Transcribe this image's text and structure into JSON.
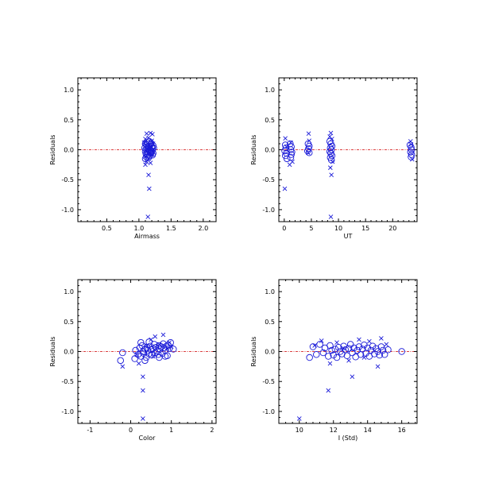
{
  "chart_data": [
    {
      "type": "scatter",
      "title": "",
      "xlabel": "Airmass",
      "ylabel": "Residuals",
      "xlim": [
        0.05,
        2.2
      ],
      "ylim": [
        -1.2,
        1.2
      ],
      "xticks": [
        0.5,
        1.0,
        1.5,
        2.0
      ],
      "xtick_labels": [
        "0.5",
        "1.0",
        "1.5",
        "2.0"
      ],
      "yticks": [
        -1.0,
        -0.5,
        0.0,
        0.5,
        1.0
      ],
      "ytick_labels": [
        "-1.0",
        "-0.5",
        "0.0",
        "0.5",
        "1.0"
      ],
      "reference_line_y": 0.0,
      "grid": false,
      "series": [
        {
          "marker": "x",
          "color": "#1a1ad8",
          "points": [
            [
              1.12,
              0.27
            ],
            [
              1.18,
              0.28
            ],
            [
              1.21,
              0.26
            ],
            [
              1.1,
              0.18
            ],
            [
              1.15,
              0.2
            ],
            [
              1.2,
              0.15
            ],
            [
              1.08,
              0.12
            ],
            [
              1.13,
              0.1
            ],
            [
              1.17,
              0.08
            ],
            [
              1.22,
              0.1
            ],
            [
              1.09,
              0.05
            ],
            [
              1.14,
              0.02
            ],
            [
              1.19,
              0.04
            ],
            [
              1.23,
              0.0
            ],
            [
              1.11,
              -0.03
            ],
            [
              1.16,
              -0.05
            ],
            [
              1.2,
              -0.08
            ],
            [
              1.1,
              -0.12
            ],
            [
              1.15,
              -0.15
            ],
            [
              1.12,
              -0.2
            ],
            [
              1.18,
              -0.22
            ],
            [
              1.1,
              -0.25
            ],
            [
              1.15,
              -0.42
            ],
            [
              1.16,
              -0.65
            ],
            [
              1.14,
              -1.12
            ]
          ]
        },
        {
          "marker": "o",
          "color": "#1a1ad8",
          "points": [
            [
              1.1,
              0.1
            ],
            [
              1.12,
              0.08
            ],
            [
              1.15,
              0.06
            ],
            [
              1.18,
              0.09
            ],
            [
              1.2,
              0.05
            ],
            [
              1.22,
              0.07
            ],
            [
              1.09,
              0.03
            ],
            [
              1.11,
              0.01
            ],
            [
              1.14,
              0.02
            ],
            [
              1.17,
              0.0
            ],
            [
              1.19,
              -0.01
            ],
            [
              1.21,
              0.02
            ],
            [
              1.23,
              0.03
            ],
            [
              1.1,
              -0.03
            ],
            [
              1.13,
              -0.04
            ],
            [
              1.16,
              -0.02
            ],
            [
              1.18,
              -0.05
            ],
            [
              1.2,
              -0.03
            ],
            [
              1.22,
              -0.06
            ],
            [
              1.11,
              -0.07
            ],
            [
              1.14,
              -0.08
            ],
            [
              1.17,
              -0.1
            ],
            [
              1.19,
              -0.06
            ],
            [
              1.12,
              -0.12
            ],
            [
              1.15,
              -0.13
            ],
            [
              1.1,
              -0.15
            ],
            [
              1.13,
              0.12
            ],
            [
              1.16,
              0.14
            ],
            [
              1.19,
              0.11
            ],
            [
              1.21,
              -0.09
            ]
          ]
        }
      ]
    },
    {
      "type": "scatter",
      "title": "",
      "xlabel": "UT",
      "ylabel": "Residuals",
      "xlim": [
        -1,
        24.5
      ],
      "ylim": [
        -1.2,
        1.2
      ],
      "xticks": [
        0,
        5,
        10,
        15,
        20
      ],
      "xtick_labels": [
        "0",
        "5",
        "10",
        "15",
        "20"
      ],
      "yticks": [
        -1.0,
        -0.5,
        0.0,
        0.5,
        1.0
      ],
      "ytick_labels": [
        "-1.0",
        "-0.5",
        "0.0",
        "0.5",
        "1.0"
      ],
      "reference_line_y": 0.0,
      "grid": false,
      "series": [
        {
          "marker": "x",
          "color": "#1a1ad8",
          "points": [
            [
              0.2,
              0.19
            ],
            [
              0.1,
              -0.65
            ],
            [
              0.4,
              0.05
            ],
            [
              1.2,
              0.12
            ],
            [
              1.5,
              -0.2
            ],
            [
              1.0,
              -0.25
            ],
            [
              4.5,
              0.27
            ],
            [
              4.6,
              0.15
            ],
            [
              4.4,
              -0.05
            ],
            [
              8.6,
              0.28
            ],
            [
              8.4,
              0.22
            ],
            [
              8.8,
              0.18
            ],
            [
              8.5,
              -0.3
            ],
            [
              8.7,
              -0.42
            ],
            [
              8.6,
              -1.12
            ],
            [
              8.9,
              -0.2
            ],
            [
              23.3,
              0.14
            ],
            [
              23.6,
              -0.16
            ],
            [
              23.4,
              0.09
            ]
          ]
        },
        {
          "marker": "o",
          "color": "#1a1ad8",
          "points": [
            [
              0.2,
              0.08
            ],
            [
              0.3,
              0.03
            ],
            [
              0.1,
              -0.02
            ],
            [
              0.4,
              -0.06
            ],
            [
              0.2,
              -0.1
            ],
            [
              0.5,
              -0.15
            ],
            [
              1.1,
              0.1
            ],
            [
              1.3,
              0.05
            ],
            [
              1.2,
              0.0
            ],
            [
              1.4,
              -0.04
            ],
            [
              1.3,
              -0.08
            ],
            [
              1.2,
              -0.13
            ],
            [
              4.4,
              0.1
            ],
            [
              4.6,
              0.06
            ],
            [
              4.5,
              0.02
            ],
            [
              4.3,
              -0.02
            ],
            [
              4.6,
              -0.05
            ],
            [
              8.4,
              0.14
            ],
            [
              8.6,
              0.1
            ],
            [
              8.8,
              0.06
            ],
            [
              8.5,
              0.03
            ],
            [
              8.7,
              0.0
            ],
            [
              8.4,
              -0.03
            ],
            [
              8.6,
              -0.06
            ],
            [
              8.8,
              -0.1
            ],
            [
              8.5,
              -0.13
            ],
            [
              8.7,
              -0.17
            ],
            [
              23.2,
              0.08
            ],
            [
              23.4,
              0.04
            ],
            [
              23.5,
              0.0
            ],
            [
              23.3,
              -0.04
            ],
            [
              23.5,
              -0.08
            ],
            [
              23.4,
              -0.12
            ]
          ]
        }
      ]
    },
    {
      "type": "scatter",
      "title": "",
      "xlabel": "Color",
      "ylabel": "Residuals",
      "xlim": [
        -1.3,
        2.1
      ],
      "ylim": [
        -1.2,
        1.2
      ],
      "xticks": [
        -1,
        0,
        1,
        2
      ],
      "xtick_labels": [
        "-1",
        "0",
        "1",
        "2"
      ],
      "yticks": [
        -1.0,
        -0.5,
        0.0,
        0.5,
        1.0
      ],
      "ytick_labels": [
        "-1.0",
        "-0.5",
        "0.0",
        "0.5",
        "1.0"
      ],
      "reference_line_y": 0.0,
      "grid": false,
      "series": [
        {
          "marker": "x",
          "color": "#1a1ad8",
          "points": [
            [
              -0.2,
              -0.25
            ],
            [
              0.3,
              -0.42
            ],
            [
              0.3,
              -0.65
            ],
            [
              0.3,
              -1.12
            ],
            [
              0.5,
              0.2
            ],
            [
              0.6,
              0.25
            ],
            [
              0.8,
              0.28
            ],
            [
              0.95,
              0.15
            ],
            [
              0.2,
              -0.2
            ],
            [
              0.4,
              0.1
            ],
            [
              0.7,
              0.12
            ],
            [
              0.9,
              0.05
            ],
            [
              0.15,
              -0.05
            ],
            [
              0.55,
              -0.08
            ],
            [
              1.0,
              0.08
            ]
          ]
        },
        {
          "marker": "o",
          "color": "#1a1ad8",
          "points": [
            [
              -0.25,
              -0.15
            ],
            [
              -0.2,
              -0.02
            ],
            [
              0.1,
              -0.12
            ],
            [
              0.12,
              0.02
            ],
            [
              0.18,
              -0.05
            ],
            [
              0.22,
              0.06
            ],
            [
              0.25,
              -0.08
            ],
            [
              0.28,
              0.1
            ],
            [
              0.3,
              0.0
            ],
            [
              0.32,
              -0.03
            ],
            [
              0.35,
              0.04
            ],
            [
              0.38,
              -0.1
            ],
            [
              0.4,
              0.07
            ],
            [
              0.42,
              0.02
            ],
            [
              0.45,
              -0.04
            ],
            [
              0.48,
              0.09
            ],
            [
              0.5,
              0.03
            ],
            [
              0.52,
              -0.06
            ],
            [
              0.55,
              0.05
            ],
            [
              0.58,
              0.12
            ],
            [
              0.6,
              -0.02
            ],
            [
              0.62,
              0.07
            ],
            [
              0.65,
              0.01
            ],
            [
              0.68,
              -0.05
            ],
            [
              0.7,
              0.1
            ],
            [
              0.72,
              0.04
            ],
            [
              0.75,
              0.08
            ],
            [
              0.78,
              -0.03
            ],
            [
              0.8,
              0.13
            ],
            [
              0.82,
              0.06
            ],
            [
              0.85,
              0.02
            ],
            [
              0.88,
              0.09
            ],
            [
              0.9,
              -0.07
            ],
            [
              0.92,
              0.11
            ],
            [
              0.95,
              0.05
            ],
            [
              0.98,
              0.15
            ],
            [
              1.05,
              0.04
            ],
            [
              0.25,
              0.15
            ],
            [
              0.35,
              -0.15
            ],
            [
              0.45,
              0.16
            ],
            [
              0.7,
              -0.1
            ],
            [
              0.85,
              -0.08
            ]
          ]
        }
      ]
    },
    {
      "type": "scatter",
      "title": "",
      "xlabel": "I (Std)",
      "ylabel": "Residuals",
      "xlim": [
        8.8,
        16.9
      ],
      "ylim": [
        -1.2,
        1.2
      ],
      "xticks": [
        10,
        12,
        14,
        16
      ],
      "xtick_labels": [
        "10",
        "12",
        "14",
        "16"
      ],
      "yticks": [
        -1.0,
        -0.5,
        0.0,
        0.5,
        1.0
      ],
      "ytick_labels": [
        "-1.0",
        "-0.5",
        "0.0",
        "0.5",
        "1.0"
      ],
      "reference_line_y": 0.0,
      "grid": false,
      "series": [
        {
          "marker": "x",
          "color": "#1a1ad8",
          "points": [
            [
              10.0,
              -1.12
            ],
            [
              11.7,
              -0.65
            ],
            [
              13.1,
              -0.42
            ],
            [
              11.3,
              0.18
            ],
            [
              12.2,
              0.15
            ],
            [
              13.5,
              0.2
            ],
            [
              14.1,
              0.17
            ],
            [
              14.8,
              0.22
            ],
            [
              11.8,
              -0.2
            ],
            [
              12.9,
              -0.15
            ],
            [
              13.8,
              -0.1
            ],
            [
              14.6,
              -0.25
            ],
            [
              15.1,
              0.12
            ],
            [
              10.9,
              0.1
            ],
            [
              12.6,
              0.05
            ]
          ]
        },
        {
          "marker": "o",
          "color": "#1a1ad8",
          "points": [
            [
              10.6,
              -0.1
            ],
            [
              10.8,
              0.08
            ],
            [
              11.0,
              -0.05
            ],
            [
              11.2,
              0.12
            ],
            [
              11.4,
              -0.02
            ],
            [
              11.5,
              0.06
            ],
            [
              11.7,
              -0.08
            ],
            [
              11.8,
              0.1
            ],
            [
              11.9,
              0.02
            ],
            [
              12.0,
              -0.06
            ],
            [
              12.1,
              0.04
            ],
            [
              12.2,
              -0.1
            ],
            [
              12.3,
              0.07
            ],
            [
              12.4,
              0.0
            ],
            [
              12.5,
              -0.04
            ],
            [
              12.6,
              0.09
            ],
            [
              12.7,
              0.03
            ],
            [
              12.8,
              -0.07
            ],
            [
              12.9,
              0.05
            ],
            [
              13.0,
              0.12
            ],
            [
              13.1,
              -0.02
            ],
            [
              13.2,
              0.06
            ],
            [
              13.3,
              -0.09
            ],
            [
              13.4,
              0.02
            ],
            [
              13.5,
              0.08
            ],
            [
              13.6,
              -0.05
            ],
            [
              13.7,
              0.04
            ],
            [
              13.8,
              0.11
            ],
            [
              13.9,
              -0.03
            ],
            [
              14.0,
              0.06
            ],
            [
              14.1,
              -0.08
            ],
            [
              14.2,
              0.02
            ],
            [
              14.3,
              0.09
            ],
            [
              14.4,
              -0.04
            ],
            [
              14.5,
              0.05
            ],
            [
              14.6,
              0.0
            ],
            [
              14.7,
              -0.06
            ],
            [
              14.8,
              0.08
            ],
            [
              14.9,
              0.02
            ],
            [
              15.0,
              -0.05
            ],
            [
              15.2,
              0.03
            ],
            [
              16.0,
              0.0
            ]
          ]
        }
      ]
    }
  ]
}
